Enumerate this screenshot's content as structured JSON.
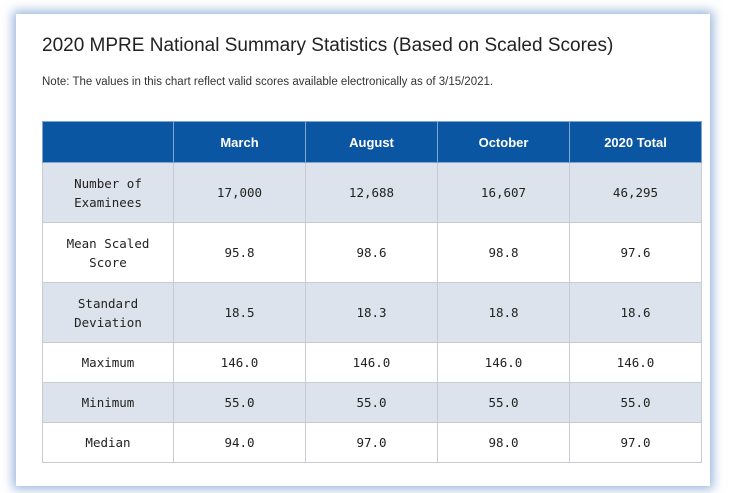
{
  "title": "2020 MPRE National Summary Statistics (Based on Scaled Scores)",
  "note": "Note: The values in this chart reflect valid scores available electronically as of 3/15/2021.",
  "table": {
    "headers": [
      "",
      "March",
      "August",
      "October",
      "2020 Total"
    ],
    "rows": [
      {
        "label": "Number of Examinees",
        "values": [
          "17,000",
          "12,688",
          "16,607",
          "46,295"
        ]
      },
      {
        "label": "Mean Scaled Score",
        "values": [
          "95.8",
          "98.6",
          "98.8",
          "97.6"
        ]
      },
      {
        "label": "Standard Deviation",
        "values": [
          "18.5",
          "18.3",
          "18.8",
          "18.6"
        ]
      },
      {
        "label": "Maximum",
        "values": [
          "146.0",
          "146.0",
          "146.0",
          "146.0"
        ]
      },
      {
        "label": "Minimum",
        "values": [
          "55.0",
          "55.0",
          "55.0",
          "55.0"
        ]
      },
      {
        "label": "Median",
        "values": [
          "94.0",
          "97.0",
          "98.0",
          "97.0"
        ]
      }
    ]
  },
  "colors": {
    "header_bg": "#0b56a3",
    "header_text": "#ffffff",
    "alt_row_bg": "#dce3ec",
    "card_glow": "#4678be"
  }
}
